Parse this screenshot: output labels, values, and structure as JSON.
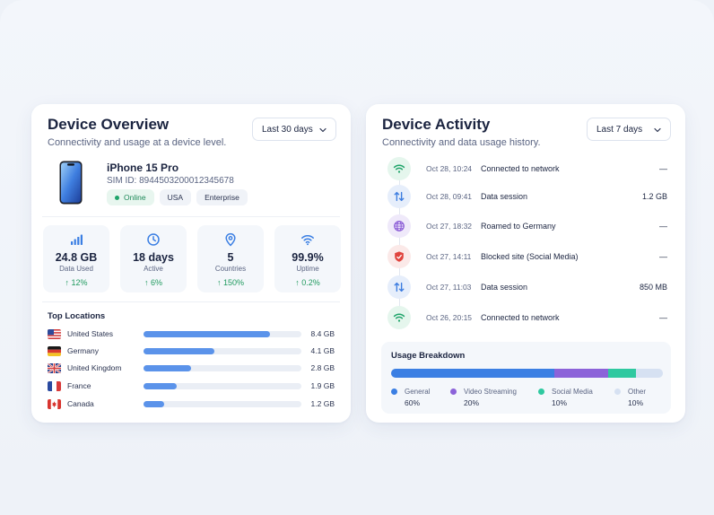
{
  "overview": {
    "title": "Device Overview",
    "subtitle": "Connectivity and usage at a device level.",
    "period": "Last 30 days",
    "device": {
      "name": "iPhone 15 Pro",
      "sim": "SIM ID: 8944503200012345678",
      "badges": [
        "Online",
        "USA",
        "Enterprise"
      ]
    },
    "stats": [
      {
        "value": "24.8 GB",
        "label": "Data Used",
        "trend": "↑ 12%",
        "icon": "signal-bars-icon"
      },
      {
        "value": "18 days",
        "label": "Active",
        "trend": "↑ 6%",
        "icon": "clock-icon"
      },
      {
        "value": "5",
        "label": "Countries",
        "trend": "↑ 150%",
        "icon": "location-pin-icon"
      },
      {
        "value": "99.9%",
        "label": "Uptime",
        "trend": "↑ 0.2%",
        "icon": "wifi-icon"
      }
    ],
    "locations_title": "Top Locations",
    "locations": [
      {
        "name": "United States",
        "value": "8.4 GB",
        "share": 0.8,
        "flag": "us-flag-icon"
      },
      {
        "name": "Germany",
        "value": "4.1 GB",
        "share": 0.45,
        "flag": "de-flag-icon"
      },
      {
        "name": "United Kingdom",
        "value": "2.8 GB",
        "share": 0.3,
        "flag": "uk-flag-icon"
      },
      {
        "name": "France",
        "value": "1.9 GB",
        "share": 0.21,
        "flag": "fr-flag-icon"
      },
      {
        "name": "Canada",
        "value": "1.2 GB",
        "share": 0.13,
        "flag": "ca-flag-icon"
      }
    ]
  },
  "activity": {
    "title": "Device Activity",
    "subtitle": "Connectivity and data usage history.",
    "period": "Last 7 days",
    "events": [
      {
        "time": "Oct 28, 10:24",
        "desc": "Connected to network",
        "value": "—",
        "icon": "wifi-icon",
        "color": "#1fa46a",
        "bg": "#e5f6ed"
      },
      {
        "time": "Oct 28, 09:41",
        "desc": "Data session",
        "value": "1.2 GB",
        "icon": "transfer-arrows-icon",
        "color": "#3d7de0",
        "bg": "#e6eefb"
      },
      {
        "time": "Oct 27, 18:32",
        "desc": "Roamed to Germany",
        "value": "—",
        "icon": "globe-icon",
        "color": "#8a5bd6",
        "bg": "#efe9fa"
      },
      {
        "time": "Oct 27, 14:11",
        "desc": "Blocked site (Social Media)",
        "value": "—",
        "icon": "shield-block-icon",
        "color": "#e0443e",
        "bg": "#fbe9e8"
      },
      {
        "time": "Oct 27, 11:03",
        "desc": "Data session",
        "value": "850 MB",
        "icon": "transfer-arrows-icon",
        "color": "#3d7de0",
        "bg": "#e6eefb"
      },
      {
        "time": "Oct 26, 20:15",
        "desc": "Connected to network",
        "value": "—",
        "icon": "wifi-icon",
        "color": "#1fa46a",
        "bg": "#e5f6ed"
      }
    ],
    "breakdown": {
      "title": "Usage Breakdown",
      "items": [
        {
          "name": "General",
          "pct": "60%",
          "share": 0.6,
          "color": "#3b7fe3"
        },
        {
          "name": "Video Streaming",
          "pct": "20%",
          "share": 0.2,
          "color": "#8c63d9"
        },
        {
          "name": "Social Media",
          "pct": "10%",
          "share": 0.1,
          "color": "#2fc9a0"
        },
        {
          "name": "Other",
          "pct": "10%",
          "share": 0.1,
          "color": "#d6e1f2"
        }
      ]
    }
  }
}
